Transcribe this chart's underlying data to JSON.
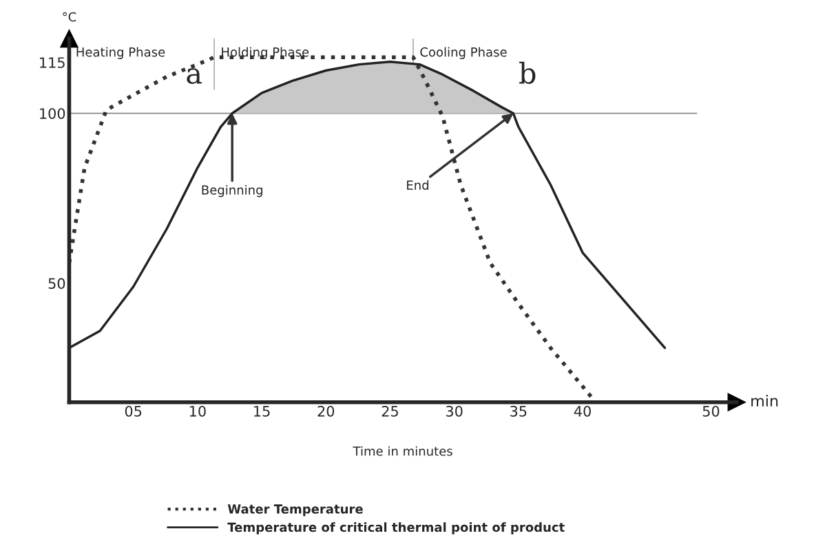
{
  "chart_data": {
    "type": "line",
    "ylabel": "°C",
    "xlabel": "Time in minutes",
    "xlim": [
      0,
      52
    ],
    "ylim": [
      15,
      122
    ],
    "xticks": [
      {
        "value": 5,
        "label": "05"
      },
      10,
      15,
      20,
      25,
      30,
      35,
      40,
      50
    ],
    "yticks": [
      50,
      100,
      115
    ],
    "grid": false,
    "legend": "bottom",
    "marker": "none",
    "series": [
      {
        "name": "Water Temperature",
        "color": "#333333",
        "line_style": "dotted",
        "x": [
          0,
          1.2,
          2.9,
          5,
          7.6,
          10,
          11.3,
          26.8,
          27.7,
          29.1,
          30.5,
          32.8,
          35,
          37.5,
          40.8
        ],
        "values": [
          56,
          84,
          101,
          105.4,
          110.8,
          114.4,
          116.5,
          116.5,
          110,
          99,
          79,
          56,
          44,
          31,
          16
        ]
      },
      {
        "name": "Temperature of critical thermal point of product",
        "color": "#222222",
        "line_style": "solid",
        "x": [
          0,
          2.4,
          5,
          7.6,
          10,
          11.8,
          12.7,
          15,
          17.4,
          20,
          22.6,
          25,
          27.3,
          29.1,
          31.5,
          33.7,
          34.6,
          35,
          37.5,
          40,
          46.4
        ],
        "values": [
          31,
          36,
          49,
          66,
          84,
          96,
          100,
          106,
          109.6,
          112.6,
          114.4,
          115.2,
          114.4,
          111.4,
          106.6,
          101.8,
          100,
          96,
          79,
          59,
          31
        ],
        "lower": [
          null,
          null,
          null,
          null,
          null,
          null,
          100,
          100,
          100,
          100,
          100,
          100,
          100,
          100,
          100,
          100,
          100,
          null,
          null,
          null,
          null
        ],
        "upper": [
          null,
          null,
          null,
          null,
          null,
          null,
          100,
          106,
          109.6,
          112.6,
          114.4,
          115.2,
          114.4,
          111.4,
          106.6,
          101.8,
          100,
          null,
          null,
          null,
          null
        ]
      }
    ],
    "ref_lines": [
      {
        "axis": "y",
        "value": 100,
        "color": "#999999"
      },
      {
        "axis": "x",
        "value": 11.3,
        "color": "#999999"
      },
      {
        "axis": "x",
        "value": 26.8,
        "color": "#999999"
      }
    ],
    "annotations": [
      "Heating Phase",
      "Holding Phase",
      "Cooling Phase",
      "a",
      "b",
      {
        "text": "Beginning",
        "x": 12.7,
        "y": 100
      },
      {
        "text": "End",
        "x": 34.6,
        "y": 100
      },
      "min"
    ]
  }
}
